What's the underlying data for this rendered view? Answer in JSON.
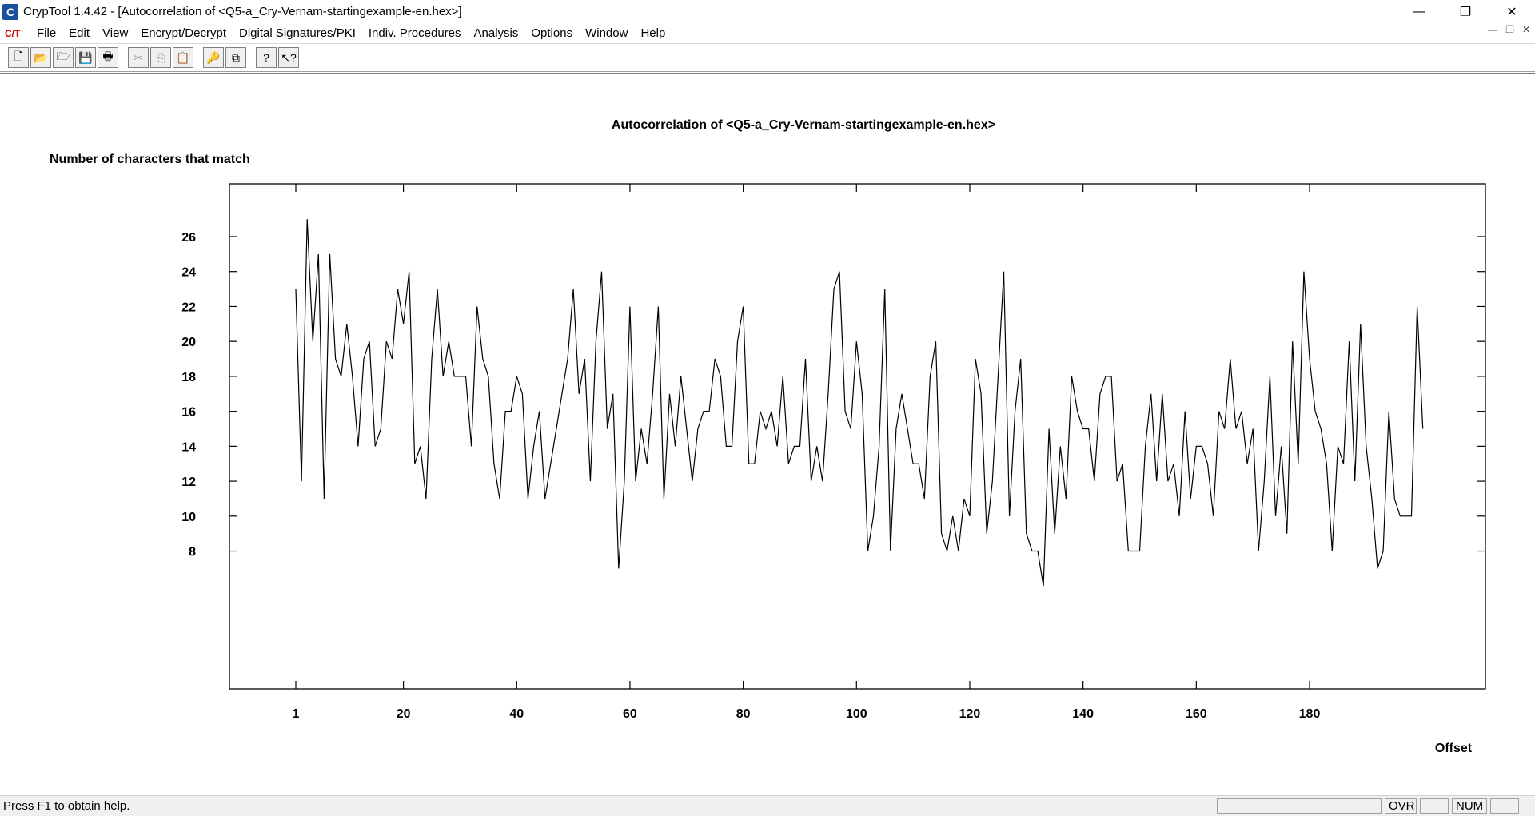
{
  "window": {
    "title": "CrypTool 1.4.42 - [Autocorrelation of <Q5-a_Cry-Vernam-startingexample-en.hex>]",
    "controls": {
      "minimize": "—",
      "restore": "❐",
      "close": "✕"
    }
  },
  "menu": {
    "items": [
      "File",
      "Edit",
      "View",
      "Encrypt/Decrypt",
      "Digital Signatures/PKI",
      "Indiv. Procedures",
      "Analysis",
      "Options",
      "Window",
      "Help"
    ]
  },
  "toolbar": {
    "buttons": [
      {
        "name": "new-document-icon",
        "glyph": "🗋",
        "enabled": true
      },
      {
        "name": "open-folder-icon",
        "glyph": "📂",
        "enabled": true
      },
      {
        "name": "open-other-icon",
        "glyph": "🗁",
        "enabled": true
      },
      {
        "name": "save-icon",
        "glyph": "💾",
        "enabled": true
      },
      {
        "name": "print-icon",
        "glyph": "🖶",
        "enabled": true
      },
      {
        "name": "cut-icon",
        "glyph": "✂",
        "enabled": false
      },
      {
        "name": "copy-icon",
        "glyph": "⎘",
        "enabled": false
      },
      {
        "name": "paste-icon",
        "glyph": "📋",
        "enabled": false
      },
      {
        "name": "key-icon",
        "glyph": "🔑",
        "enabled": false
      },
      {
        "name": "windows-icon",
        "glyph": "⧉",
        "enabled": true
      },
      {
        "name": "help-icon",
        "glyph": "?",
        "enabled": true
      },
      {
        "name": "context-help-icon",
        "glyph": "↖?",
        "enabled": true
      }
    ]
  },
  "chart_data": {
    "type": "line",
    "title": "Autocorrelation of <Q5-a_Cry-Vernam-startingexample-en.hex>",
    "ylabel": "Number of characters that match",
    "xlabel": "Offset",
    "xlim": [
      1,
      215
    ],
    "ylim": [
      4,
      28
    ],
    "x_ticks": [
      1,
      20,
      40,
      60,
      80,
      100,
      120,
      140,
      160,
      180
    ],
    "y_ticks": [
      8,
      10,
      12,
      14,
      16,
      18,
      20,
      22,
      24,
      26
    ],
    "grid": false,
    "series": [
      {
        "x_start": 1,
        "values": [
          23,
          12,
          27,
          20,
          25,
          11,
          25,
          19,
          18,
          21,
          18,
          14,
          19,
          20,
          14,
          15,
          20,
          19,
          23,
          21,
          24,
          13,
          14,
          11,
          19,
          23,
          18,
          20,
          18,
          18,
          18,
          14,
          22,
          19,
          18,
          13,
          11,
          16,
          16,
          18,
          17,
          11,
          14,
          16,
          11,
          13,
          15,
          17,
          19,
          23,
          17,
          19,
          12,
          20,
          24,
          15,
          17,
          7,
          12,
          22,
          12,
          15,
          13,
          17,
          22,
          11,
          17,
          14,
          18,
          15,
          12,
          15,
          16,
          16,
          19,
          18,
          14,
          14,
          20,
          22,
          13,
          13,
          16,
          15,
          16,
          14,
          18,
          13,
          14,
          14,
          19,
          12,
          14,
          12,
          17,
          23,
          24,
          16,
          15,
          20,
          17,
          8,
          10,
          14,
          23,
          8,
          15,
          17,
          15,
          13,
          13,
          11,
          18,
          20,
          9,
          8,
          10,
          8,
          11,
          10,
          19,
          17,
          9,
          12,
          18,
          24,
          10,
          16,
          19,
          9,
          8,
          8,
          6,
          15,
          9,
          14,
          11,
          18,
          16,
          15,
          15,
          12,
          17,
          18,
          18,
          12,
          13,
          8,
          8,
          8,
          14,
          17,
          12,
          17,
          12,
          13,
          10,
          16,
          11,
          14,
          14,
          13,
          10,
          16,
          15,
          19,
          15,
          16,
          13,
          15,
          8,
          12,
          18,
          10,
          14,
          9,
          20,
          13,
          24,
          19,
          16,
          15,
          13,
          8,
          14,
          13,
          20,
          12,
          21,
          14,
          11,
          7,
          8,
          16,
          11,
          10,
          10,
          10,
          22,
          15
        ]
      }
    ]
  },
  "status": {
    "help_text": "Press F1 to obtain help.",
    "panels": [
      "",
      "OVR",
      "",
      "NUM",
      ""
    ]
  }
}
